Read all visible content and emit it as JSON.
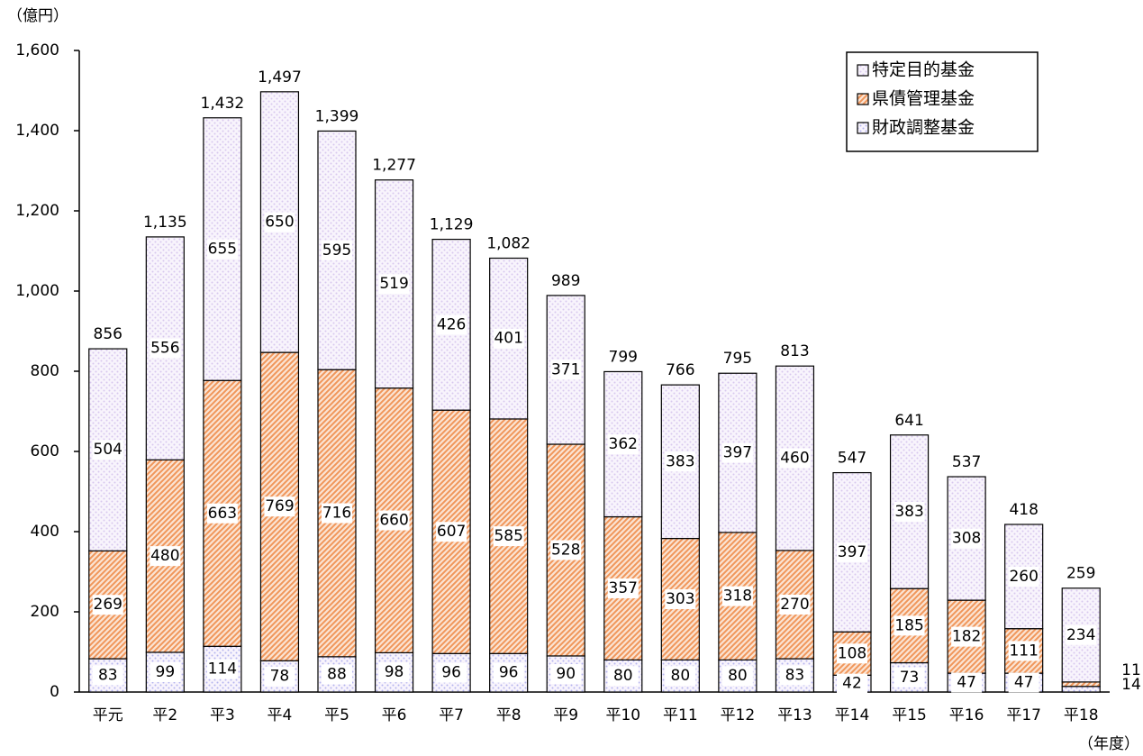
{
  "chart_data": {
    "type": "bar",
    "stacked": true,
    "y_unit": "（億円）",
    "x_unit": "（年度）",
    "categories": [
      "平元",
      "平2",
      "平3",
      "平4",
      "平5",
      "平6",
      "平7",
      "平8",
      "平9",
      "平10",
      "平11",
      "平12",
      "平13",
      "平14",
      "平15",
      "平16",
      "平17",
      "平18"
    ],
    "series": [
      {
        "name": "財政調整基金",
        "color": "#b4b4ee",
        "values": [
          83,
          99,
          114,
          78,
          88,
          98,
          96,
          96,
          90,
          80,
          80,
          80,
          83,
          42,
          73,
          47,
          47,
          14
        ]
      },
      {
        "name": "県債管理基金",
        "color": "#f0965a",
        "values": [
          269,
          480,
          663,
          769,
          716,
          660,
          607,
          585,
          528,
          357,
          303,
          318,
          270,
          108,
          185,
          182,
          111,
          11
        ]
      },
      {
        "name": "特定目的基金",
        "color": "#d8c8ee",
        "values": [
          504,
          556,
          655,
          650,
          595,
          519,
          426,
          401,
          371,
          362,
          383,
          397,
          460,
          397,
          383,
          308,
          260,
          234
        ]
      }
    ],
    "totals": [
      856,
      1135,
      1432,
      1497,
      1399,
      1277,
      1129,
      1082,
      989,
      799,
      766,
      795,
      813,
      547,
      641,
      537,
      418,
      259
    ],
    "total_labels": [
      "856",
      "1,135",
      "1,432",
      "1,497",
      "1,399",
      "1,277",
      "1,129",
      "1,082",
      "989",
      "799",
      "766",
      "795",
      "813",
      "547",
      "641",
      "537",
      "418",
      "259"
    ],
    "ylim": [
      0,
      1600
    ],
    "yticks": [
      0,
      200,
      400,
      600,
      800,
      {
        "value": 1000,
        "label": "1,000"
      },
      {
        "value": 1200,
        "label": "1,200"
      },
      {
        "value": 1400,
        "label": "1,400"
      },
      {
        "value": 1600,
        "label": "1,600"
      }
    ],
    "legend": "top-right"
  }
}
